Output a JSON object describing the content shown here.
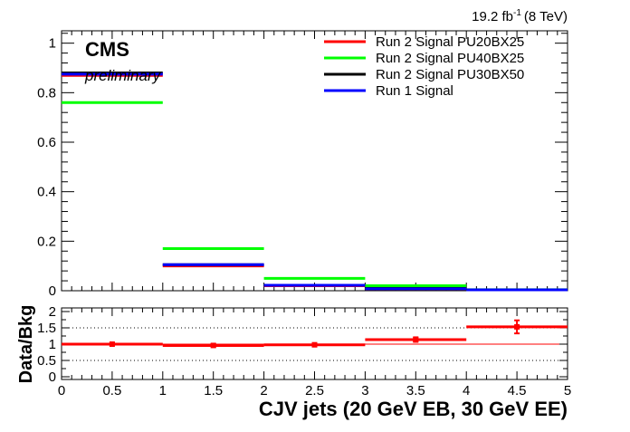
{
  "lumi_label": "19.2 fb",
  "lumi_exponent": "-1",
  "lumi_energy": "(8 TeV)",
  "cms_label": "CMS",
  "preliminary_label": "preliminary",
  "chart_data": [
    {
      "type": "line",
      "drawstyle": "step-histogram",
      "panel": "main",
      "bin_edges": [
        0,
        1,
        2,
        3,
        4,
        5
      ],
      "xlim": [
        0,
        5
      ],
      "ylim": [
        0,
        1.05
      ],
      "y_ticks": [
        0,
        0.2,
        0.4,
        0.6,
        0.8,
        1
      ],
      "y_tick_labels": [
        "0",
        "0.2",
        "0.4",
        "0.6",
        "0.8",
        "1"
      ],
      "legend_position": "top-right",
      "series": [
        {
          "name": "Run 2 Signal PU20BX25",
          "color": "#ff0000",
          "values": [
            0.87,
            0.1,
            0.02,
            0.008,
            0.002
          ]
        },
        {
          "name": "Run 2 Signal PU40BX25",
          "color": "#00ff00",
          "values": [
            0.76,
            0.17,
            0.05,
            0.02,
            0.004
          ]
        },
        {
          "name": "Run 2 Signal PU30BX50",
          "color": "#000000",
          "values": [
            0.88,
            0.105,
            0.022,
            0.009,
            0.002
          ]
        },
        {
          "name": "Run 1 Signal",
          "color": "#0000ff",
          "values": [
            0.875,
            0.105,
            0.022,
            0.008,
            0.002
          ]
        }
      ]
    },
    {
      "type": "scatter",
      "panel": "ratio",
      "ylabel": "Data/Bkg",
      "xlabel": "CJV jets (20 GeV EB, 30 GeV EE)",
      "xlim": [
        0,
        5
      ],
      "ylim": [
        0,
        2
      ],
      "x_ticks": [
        0,
        0.5,
        1,
        1.5,
        2,
        2.5,
        3,
        3.5,
        4,
        4.5,
        5
      ],
      "x_tick_labels": [
        "0",
        "0.5",
        "1",
        "1.5",
        "2",
        "2.5",
        "3",
        "3.5",
        "4",
        "4.5",
        "5"
      ],
      "y_ticks": [
        0,
        0.5,
        1,
        1.5,
        2
      ],
      "y_tick_labels": [
        "0",
        "0.5",
        "1",
        "1.5",
        "2"
      ],
      "reference_line": 1,
      "dotted_lines": [
        0.5,
        1.5
      ],
      "points": {
        "color": "#ff0000",
        "x": [
          0.5,
          1.5,
          2.5,
          3.5,
          4.5
        ],
        "xerr": [
          0.5,
          0.5,
          0.5,
          0.5,
          0.5
        ],
        "y": [
          1.0,
          0.96,
          0.98,
          1.14,
          1.53
        ],
        "yerr": [
          0.02,
          0.04,
          0.05,
          0.07,
          0.2
        ]
      }
    }
  ]
}
